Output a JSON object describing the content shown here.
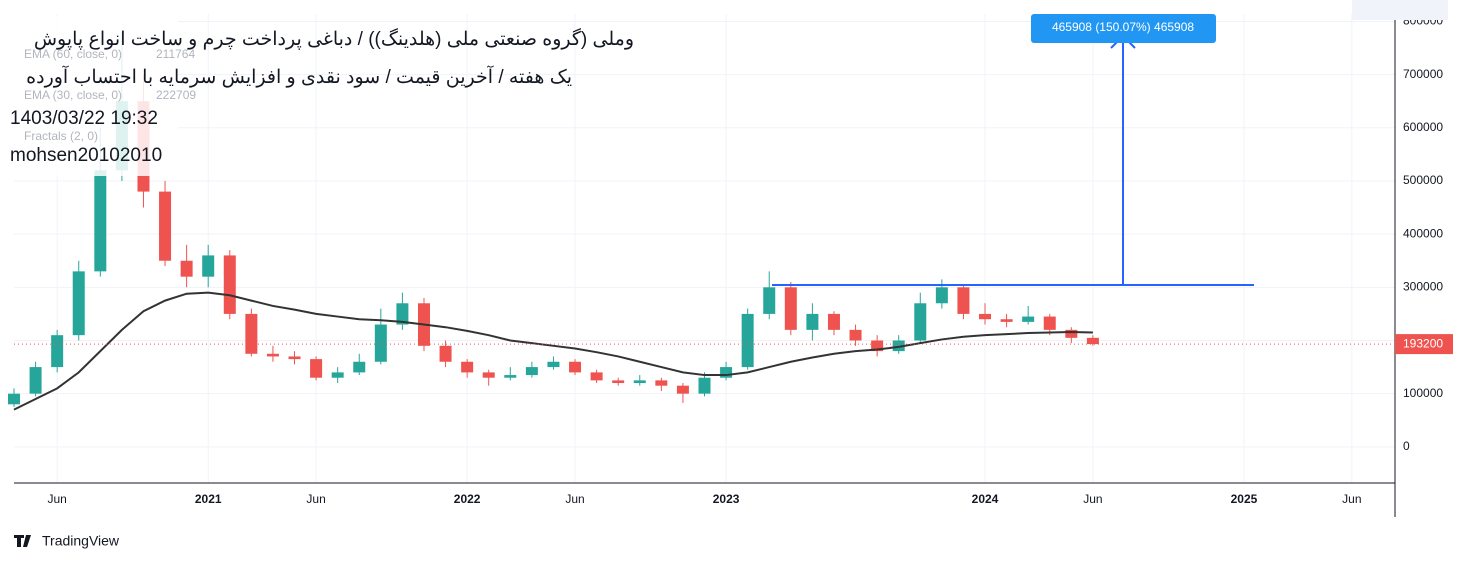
{
  "chart_data": {
    "type": "candlestick",
    "title": "وملی (گروه صنعتی ملی (هلدینگ)) / دباغی پرداخت چرم و ساخت انواع پاپوش",
    "subtitle": "یک هفته / آخرین قیمت / سود نقدی و افزایش سرمایه با احتساب آورده",
    "timestamp": "1403/03/22 19:32",
    "author": "mohsen20102010",
    "brand": "TradingView",
    "indicators": [
      {
        "label": "EMA (60, close, 0)",
        "value": 211764
      },
      {
        "label": "EMA (30, close, 0)",
        "value": 222709
      },
      {
        "label": "Fractals (2, 0)"
      }
    ],
    "measure_label": "465908 (150.07%) 465908",
    "high": [
      110000,
      160000,
      220000,
      350000,
      600000,
      780342,
      700000,
      500000,
      380000,
      380000,
      370000,
      260000,
      190000,
      180000,
      170000,
      150000,
      175000,
      260000,
      290000,
      280000,
      200000,
      165000,
      145000,
      150000,
      160000,
      170000,
      165000,
      145000,
      130000,
      135000,
      130000,
      120000,
      140000,
      160000,
      260000,
      330000,
      310000,
      270000,
      255000,
      230000,
      210000,
      210000,
      290000,
      315000,
      305000,
      270000,
      250000,
      265000,
      250000,
      225000,
      210000
    ],
    "low": [
      75000,
      95000,
      140000,
      200000,
      320000,
      500000,
      450000,
      340000,
      300000,
      300000,
      240000,
      170000,
      160000,
      155000,
      125000,
      120000,
      135000,
      155000,
      220000,
      180000,
      150000,
      130000,
      115000,
      125000,
      130000,
      145000,
      135000,
      120000,
      115000,
      115000,
      105000,
      82689,
      95000,
      125000,
      145000,
      240000,
      210000,
      200000,
      210000,
      190000,
      170000,
      175000,
      195000,
      260000,
      240000,
      230000,
      225000,
      230000,
      210000,
      195000,
      190000
    ],
    "last_price": 193200,
    "x": [
      "2020-04",
      "2020-05",
      "2020-06",
      "2020-07",
      "2020-08",
      "2020-09",
      "2020-10",
      "2020-11",
      "2020-12",
      "2021-01",
      "2021-02",
      "2021-03",
      "2021-04",
      "2021-05",
      "2021-06",
      "2021-07",
      "2021-08",
      "2021-09",
      "2021-10",
      "2021-11",
      "2021-12",
      "2022-01",
      "2022-02",
      "2022-03",
      "2022-04",
      "2022-05",
      "2022-06",
      "2022-07",
      "2022-08",
      "2022-09",
      "2022-10",
      "2022-11",
      "2022-12",
      "2023-01",
      "2023-02",
      "2023-03",
      "2023-04",
      "2023-05",
      "2023-06",
      "2023-07",
      "2023-08",
      "2023-09",
      "2023-10",
      "2023-11",
      "2023-12",
      "2024-01",
      "2024-02",
      "2024-03",
      "2024-04",
      "2024-05",
      "2024-06"
    ],
    "open": [
      80000,
      100000,
      150000,
      210000,
      330000,
      520000,
      650000,
      480000,
      350000,
      320000,
      360000,
      250000,
      175000,
      170000,
      165000,
      130000,
      140000,
      160000,
      230000,
      270000,
      190000,
      160000,
      140000,
      130000,
      135000,
      150000,
      160000,
      140000,
      125000,
      120000,
      125000,
      115000,
      100000,
      130000,
      150000,
      250000,
      300000,
      220000,
      250000,
      220000,
      200000,
      180000,
      200000,
      270000,
      300000,
      250000,
      240000,
      235000,
      245000,
      220000,
      205000
    ],
    "close": [
      100000,
      150000,
      210000,
      330000,
      520000,
      650000,
      480000,
      350000,
      320000,
      360000,
      250000,
      175000,
      170000,
      165000,
      130000,
      140000,
      160000,
      230000,
      270000,
      190000,
      160000,
      140000,
      130000,
      135000,
      150000,
      160000,
      140000,
      125000,
      120000,
      125000,
      115000,
      100000,
      130000,
      150000,
      250000,
      300000,
      220000,
      250000,
      220000,
      200000,
      180000,
      200000,
      270000,
      300000,
      250000,
      240000,
      235000,
      245000,
      220000,
      205000,
      193200
    ],
    "up_color": "#26a69a",
    "down_color": "#ef5350",
    "series": [
      {
        "name": "EMA (60, close, 0)",
        "color": "#333333",
        "values": [
          70000,
          90000,
          110000,
          140000,
          180000,
          220000,
          255000,
          275000,
          288000,
          290000,
          285000,
          275000,
          265000,
          258000,
          250000,
          245000,
          240000,
          238000,
          235000,
          230000,
          225000,
          218000,
          210000,
          200000,
          195000,
          190000,
          185000,
          178000,
          170000,
          160000,
          150000,
          140000,
          135000,
          135000,
          140000,
          150000,
          160000,
          168000,
          175000,
          180000,
          183000,
          188000,
          195000,
          202000,
          207000,
          210000,
          212000,
          214000,
          215000,
          216000,
          215000
        ]
      }
    ],
    "xlim": [
      "2020-04",
      "2025-08"
    ],
    "xticks": [
      {
        "value": "2020-06",
        "label": "Jun"
      },
      {
        "value": "2021-01",
        "label": "2021"
      },
      {
        "value": "2021-06",
        "label": "Jun"
      },
      {
        "value": "2022-01",
        "label": "2022"
      },
      {
        "value": "2022-06",
        "label": "Jun"
      },
      {
        "value": "2023-01",
        "label": "2023"
      },
      {
        "value": "2024-01",
        "label": "2024"
      },
      {
        "value": "2024-06",
        "label": "Jun"
      },
      {
        "value": "2025-01",
        "label": "2025"
      },
      {
        "value": "2025-06",
        "label": "Jun"
      }
    ],
    "ylim": [
      -68000,
      814000
    ],
    "yticks": [
      0,
      100000,
      200000,
      300000,
      400000,
      500000,
      600000,
      700000,
      800000
    ],
    "grid": true
  }
}
